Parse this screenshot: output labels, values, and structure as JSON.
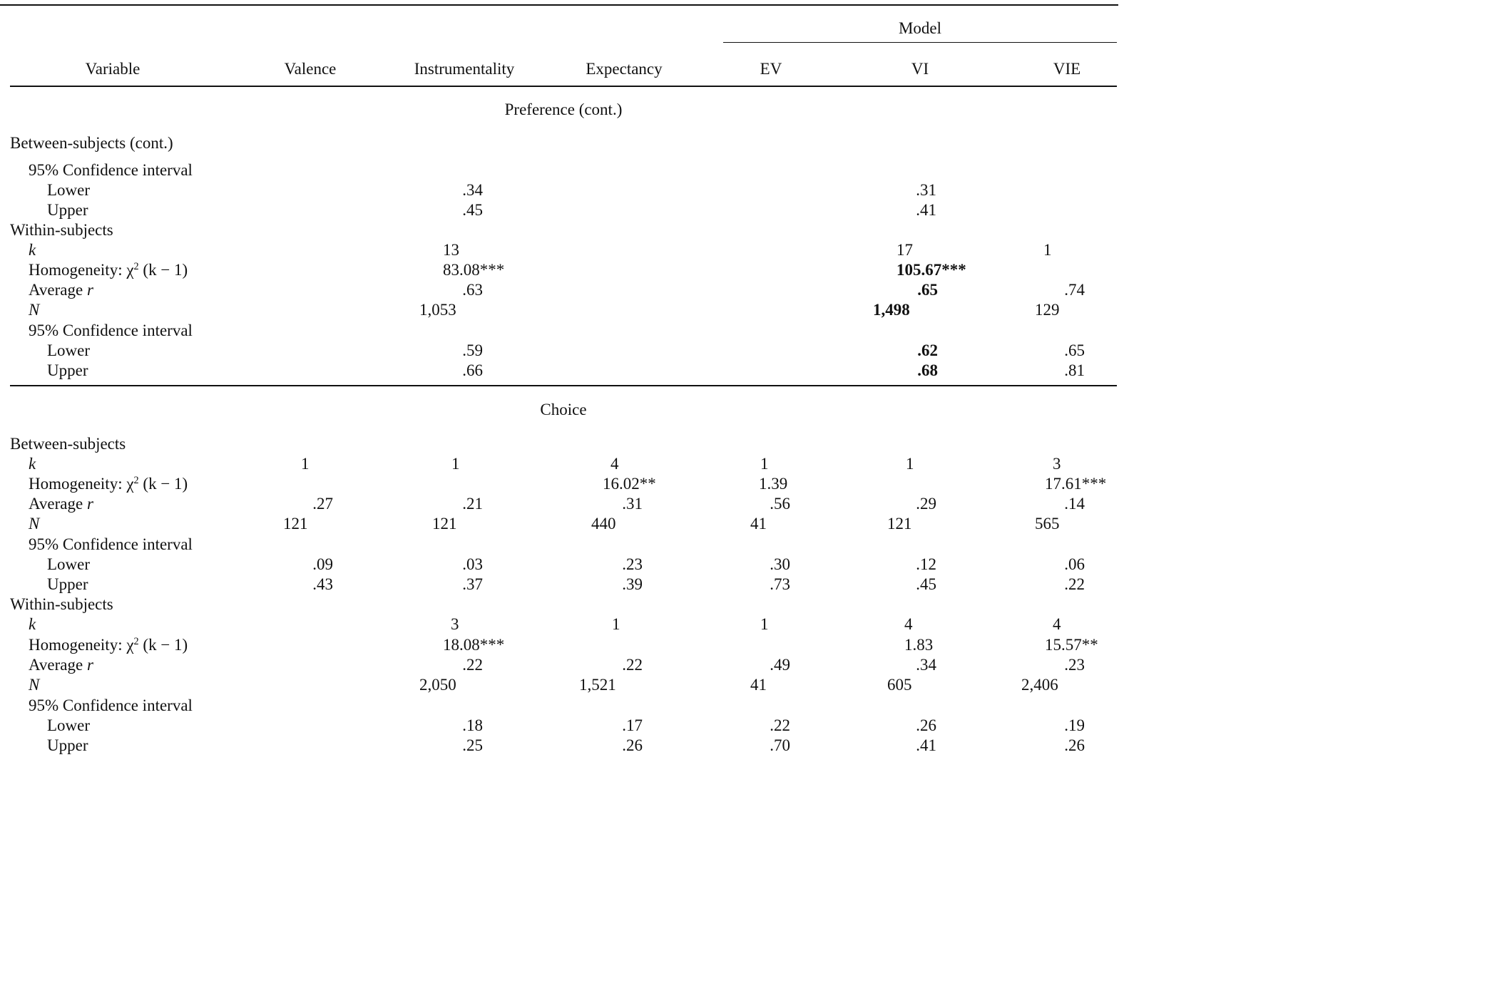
{
  "header": {
    "model_group": "Model",
    "columns": [
      "Variable",
      "Valence",
      "Instrumentality",
      "Expectancy",
      "EV",
      "VI",
      "VIE"
    ]
  },
  "sections": {
    "preference": {
      "title": "Preference (cont.)",
      "between_title": "Between-subjects (cont.)",
      "between_ci_label": "95% Confidence interval",
      "between_lower_label": "Lower",
      "between_upper_label": "Upper",
      "between_lower": {
        "instrumentality": ".34",
        "vi": ".31"
      },
      "between_upper": {
        "instrumentality": ".45",
        "vi": ".41"
      },
      "within_title": "Within-subjects",
      "within_k_label": "k",
      "within_homog_label": "Homogeneity: χ",
      "within_homog_sup": "2",
      "within_homog_tail": " (k − 1)",
      "within_avg_label": "Average",
      "within_avg_var": " r",
      "within_n_label": "N",
      "within_ci_label": "95% Confidence interval",
      "within_lower_label": "Lower",
      "within_upper_label": "Upper",
      "within": {
        "k": {
          "instrumentality": "13",
          "vi": "17",
          "vie": "1"
        },
        "homogeneity": {
          "instrumentality": "83.08***",
          "vi": "105.67***"
        },
        "average_r": {
          "instrumentality": ".63",
          "vi": ".65",
          "vie": ".74"
        },
        "n": {
          "instrumentality": "1,053",
          "vi": "1,498",
          "vie": "129"
        },
        "lower": {
          "instrumentality": ".59",
          "vi": ".62",
          "vie": ".65"
        },
        "upper": {
          "instrumentality": ".66",
          "vi": ".68",
          "vie": ".81"
        }
      }
    },
    "choice": {
      "title": "Choice",
      "between_title": "Between-subjects",
      "between": {
        "k": {
          "valence": "1",
          "instrumentality": "1",
          "expectancy": "4",
          "ev": "1",
          "vi": "1",
          "vie": "3"
        },
        "homogeneity": {
          "expectancy": "16.02**",
          "ev": "1.39",
          "vie": "17.61***"
        },
        "average_r": {
          "valence": ".27",
          "instrumentality": ".21",
          "expectancy": ".31",
          "ev": ".56",
          "vi": ".29",
          "vie": ".14"
        },
        "n": {
          "valence": "121",
          "instrumentality": "121",
          "expectancy": "440",
          "ev": "41",
          "vi": "121",
          "vie": "565"
        },
        "lower": {
          "valence": ".09",
          "instrumentality": ".03",
          "expectancy": ".23",
          "ev": ".30",
          "vi": ".12",
          "vie": ".06"
        },
        "upper": {
          "valence": ".43",
          "instrumentality": ".37",
          "expectancy": ".39",
          "ev": ".73",
          "vi": ".45",
          "vie": ".22"
        }
      },
      "within_title": "Within-subjects",
      "within": {
        "k": {
          "instrumentality": "3",
          "expectancy": "1",
          "ev": "1",
          "vi": "4",
          "vie": "4"
        },
        "homogeneity": {
          "instrumentality": "18.08***",
          "vi": "1.83",
          "vie": "15.57**"
        },
        "average_r": {
          "instrumentality": ".22",
          "expectancy": ".22",
          "ev": ".49",
          "vi": ".34",
          "vie": ".23"
        },
        "n": {
          "instrumentality": "2,050",
          "expectancy": "1,521",
          "ev": "41",
          "vi": "605",
          "vie": "2,406"
        },
        "lower": {
          "instrumentality": ".18",
          "expectancy": ".17",
          "ev": ".22",
          "vi": ".26",
          "vie": ".19"
        },
        "upper": {
          "instrumentality": ".25",
          "expectancy": ".26",
          "ev": ".70",
          "vi": ".41",
          "vie": ".26"
        }
      }
    }
  }
}
